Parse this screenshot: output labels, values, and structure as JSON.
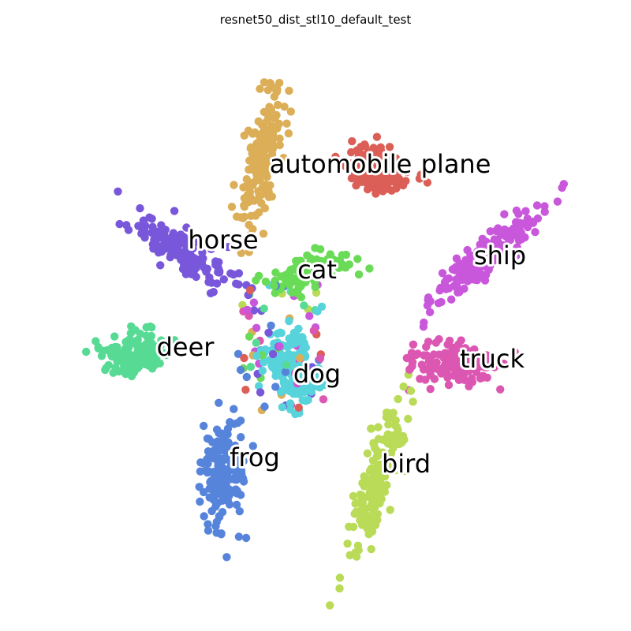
{
  "chart_data": {
    "type": "scatter",
    "title": "resnet50_dist_stl10_default_test",
    "xlabel": "",
    "ylabel": "",
    "axes_visible": false,
    "grid": false,
    "legend": "none",
    "clusters": [
      {
        "label": "airplane",
        "display_label": "plane",
        "color": "#db5f57",
        "center": [
          480,
          215
        ],
        "label_pos": [
          578,
          208
        ],
        "spread": [
          25,
          40
        ],
        "angle": -70,
        "n": 170
      },
      {
        "label": "automobile",
        "display_label": "automobile",
        "color": "#dbae57",
        "center": [
          333,
          205
        ],
        "label_pos": [
          432,
          208
        ],
        "spread": [
          18,
          78
        ],
        "angle": 10,
        "n": 170
      },
      {
        "label": "bird",
        "display_label": "bird",
        "color": "#b9db57",
        "center": [
          478,
          605
        ],
        "label_pos": [
          515,
          588
        ],
        "spread": [
          18,
          90
        ],
        "angle": 17,
        "n": 180
      },
      {
        "label": "cat",
        "display_label": "cat",
        "color": "#69db57",
        "center": [
          390,
          345
        ],
        "label_pos": [
          402,
          342
        ],
        "spread": [
          45,
          18
        ],
        "angle": -15,
        "n": 120
      },
      {
        "label": "deer",
        "display_label": "deer",
        "color": "#57db94",
        "center": [
          170,
          450
        ],
        "label_pos": [
          235,
          440
        ],
        "spread": [
          40,
          25
        ],
        "angle": 0,
        "n": 150
      },
      {
        "label": "dog",
        "display_label": "dog",
        "color": "#57d3db",
        "center": [
          370,
          470
        ],
        "label_pos": [
          402,
          474
        ],
        "spread": [
          30,
          45
        ],
        "angle": -20,
        "n": 160
      },
      {
        "label": "frog",
        "display_label": "frog",
        "color": "#5784db",
        "center": [
          285,
          600
        ],
        "label_pos": [
          323,
          580
        ],
        "spread": [
          25,
          60
        ],
        "angle": 5,
        "n": 170
      },
      {
        "label": "horse",
        "display_label": "horse",
        "color": "#7957db",
        "center": [
          230,
          315
        ],
        "label_pos": [
          283,
          304
        ],
        "spread": [
          65,
          22
        ],
        "angle": 30,
        "n": 160
      },
      {
        "label": "ship",
        "display_label": "ship",
        "color": "#c957db",
        "center": [
          615,
          325
        ],
        "label_pos": [
          634,
          324
        ],
        "spread": [
          18,
          85
        ],
        "angle": 50,
        "n": 170
      },
      {
        "label": "truck",
        "display_label": "truck",
        "color": "#db57b2",
        "center": [
          580,
          460
        ],
        "label_pos": [
          624,
          455
        ],
        "spread": [
          55,
          22
        ],
        "angle": 0,
        "n": 160
      }
    ]
  }
}
